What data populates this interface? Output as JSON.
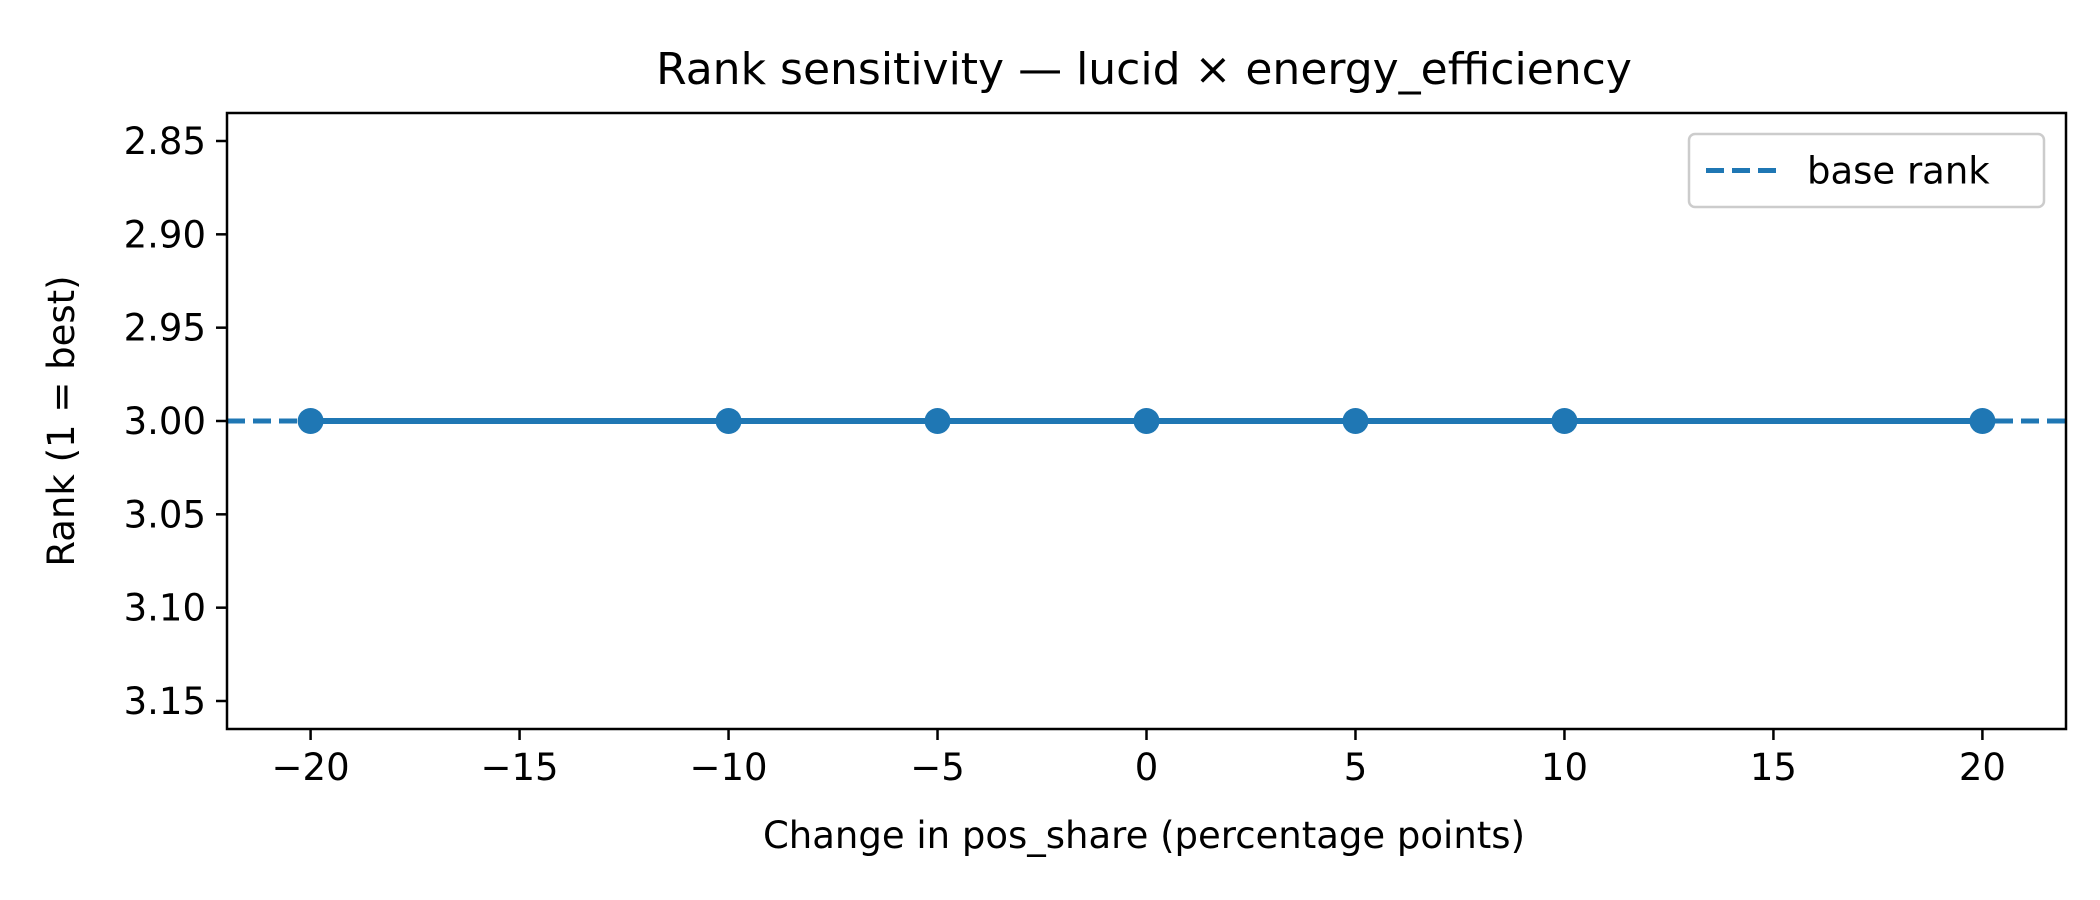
{
  "chart_data": {
    "type": "line",
    "title": "Rank sensitivity — lucid × energy_efficiency",
    "xlabel": "Change in pos_share (percentage points)",
    "ylabel": "Rank (1 = best)",
    "xlim": [
      -22,
      22
    ],
    "ylim": [
      3.165,
      2.835
    ],
    "y_inverted": true,
    "grid": false,
    "x_ticks": [
      -20,
      -15,
      -10,
      -5,
      0,
      5,
      10,
      15,
      20
    ],
    "x_tick_labels": [
      "−20",
      "−15",
      "−10",
      "−5",
      "0",
      "5",
      "10",
      "15",
      "20"
    ],
    "y_ticks": [
      2.85,
      2.9,
      2.95,
      3.0,
      3.05,
      3.1,
      3.15
    ],
    "y_tick_labels": [
      "2.85",
      "2.90",
      "2.95",
      "3.00",
      "3.05",
      "3.10",
      "3.15"
    ],
    "series": [
      {
        "x": [
          -20,
          -10,
          -5,
          0,
          5,
          10,
          20
        ],
        "y": [
          3,
          3,
          3,
          3,
          3,
          3,
          3
        ],
        "color": "#1f77b4",
        "marker": "circle"
      }
    ],
    "reference_lines": [
      {
        "name": "base rank",
        "y": 3,
        "style": "dashed",
        "color": "#1f77b4"
      }
    ],
    "legend": {
      "position": "top-right",
      "entries": [
        {
          "label": "base rank",
          "style": "dashed",
          "color": "#1f77b4"
        }
      ]
    }
  }
}
